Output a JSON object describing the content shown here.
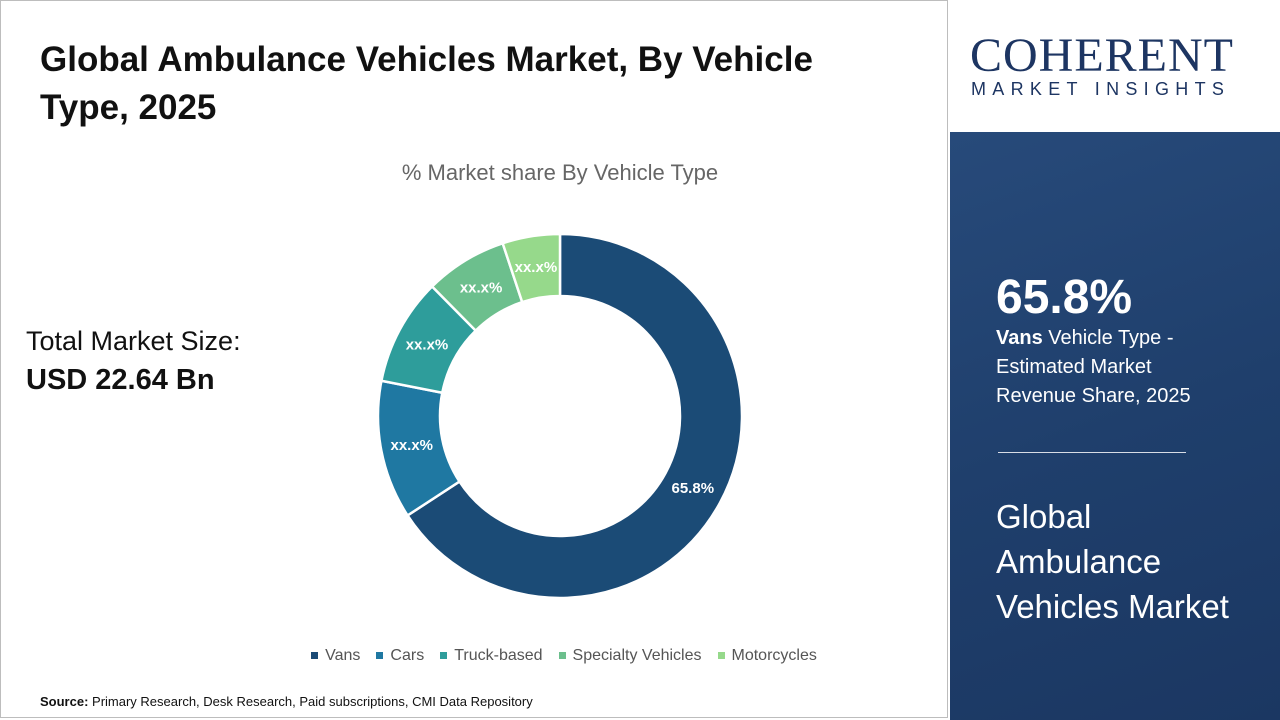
{
  "title": "Global Ambulance Vehicles Market, By Vehicle Type, 2025",
  "market_size": {
    "label": "Total Market Size:",
    "value": "USD 22.64 Bn"
  },
  "source": {
    "label": "Source:",
    "text": "Primary Research, Desk Research, Paid subscriptions, CMI Data Repository"
  },
  "logo": {
    "main": "COHERENT",
    "sub": "MARKET INSIGHTS"
  },
  "side_panel": {
    "highlight_value": "65.8%",
    "highlight_bold": "Vans",
    "highlight_text": " Vehicle Type - Estimated Market Revenue Share, 2025",
    "market_name": "Global Ambulance Vehicles Market"
  },
  "chart_data": {
    "type": "pie",
    "donut": true,
    "title": "% Market share By Vehicle Type",
    "categories": [
      "Vans",
      "Cars",
      "Truck-based",
      "Specialty Vehicles",
      "Motorcycles"
    ],
    "values": [
      65.8,
      12.3,
      9.5,
      7.3,
      5.1
    ],
    "data_labels": [
      "65.8%",
      "xx.x%",
      "xx.x%",
      "xx.x%",
      "xx.x%"
    ],
    "colors": [
      "#1b4b76",
      "#1f78a2",
      "#2e9d9b",
      "#6cbf8d",
      "#96d98b"
    ],
    "legend_position": "bottom"
  }
}
